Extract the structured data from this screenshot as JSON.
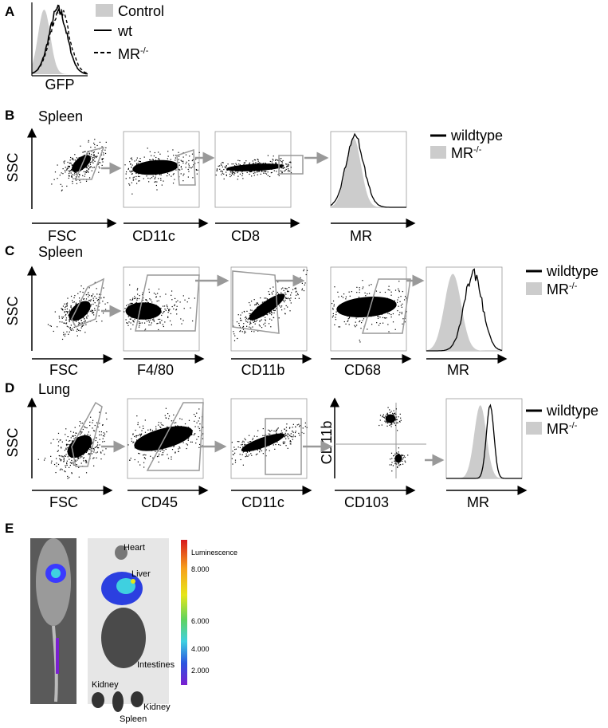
{
  "panel_a": {
    "letter": "A",
    "legend": [
      {
        "name": "Control"
      },
      {
        "name": "wt"
      },
      {
        "name": "MR",
        "sup": "-/-"
      }
    ],
    "x_label": "GFP"
  },
  "panel_b": {
    "letter": "B",
    "tissue": "Spleen",
    "y_label": "SSC",
    "x_labels": [
      "FSC",
      "CD11c",
      "CD8",
      "MR"
    ],
    "legend": [
      {
        "name": "wildtype"
      },
      {
        "name": "MR",
        "sup": "-/-"
      }
    ]
  },
  "panel_c": {
    "letter": "C",
    "tissue": "Spleen",
    "y_label": "SSC",
    "x_labels": [
      "FSC",
      "F4/80",
      "CD11b",
      "CD68",
      "MR"
    ],
    "legend": [
      {
        "name": "wildtype"
      },
      {
        "name": "MR",
        "sup": "-/-"
      }
    ]
  },
  "panel_d": {
    "letter": "D",
    "tissue": "Lung",
    "y_label": "SSC",
    "x_labels": [
      "FSC",
      "CD45",
      "CD11c",
      "CD103",
      "MR"
    ],
    "quadrant_y_label": "CD11b",
    "legend": [
      {
        "name": "wildtype"
      },
      {
        "name": "MR",
        "sup": "-/-"
      }
    ]
  },
  "panel_e": {
    "letter": "E",
    "colorbar_title": "Luminescence",
    "colorbar_ticks": [
      "8.000",
      "6.000",
      "4.000",
      "2.000"
    ],
    "organs": [
      "Heart",
      "Liver",
      "Intestines",
      "Kidney",
      "Kidney",
      "Spleen"
    ]
  }
}
